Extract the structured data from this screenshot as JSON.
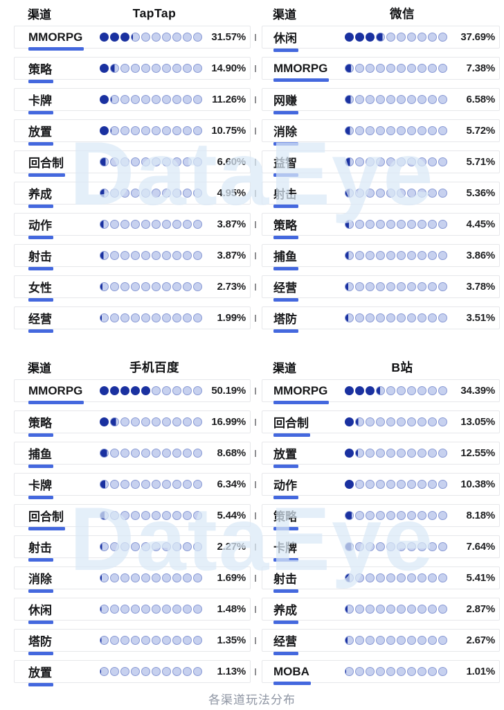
{
  "page": {
    "column_header": "渠道",
    "footer_caption": "各渠道玩法分布",
    "watermark_text": "DataEye"
  },
  "colors": {
    "dot_filled": "#1a31a0",
    "dot_empty_fill": "#c7d1ef",
    "dot_empty_border": "#8798d4",
    "label_underline": "#4468de",
    "row_border": "#e6e7ea",
    "text_primary": "#17181a",
    "tick_gray": "#8f8f92",
    "footer_text": "#8e95a3",
    "watermark_blue": "#dbe9f7"
  },
  "chart_data": [
    {
      "type": "bar",
      "style": "dot-matrix: 10 circles per row, each circle = 10%, filled proportionally",
      "legend_position": "none",
      "grid": false,
      "xlim": [
        0,
        100
      ],
      "unit": "%",
      "col_header": "渠道",
      "title": "TapTap",
      "categories": [
        "MMORPG",
        "策略",
        "卡牌",
        "放置",
        "回合制",
        "养成",
        "动作",
        "射击",
        "女性",
        "经营"
      ],
      "values": [
        31.57,
        14.9,
        11.26,
        10.75,
        6.6,
        4.95,
        3.87,
        3.87,
        2.73,
        1.99
      ]
    },
    {
      "type": "bar",
      "style": "dot-matrix: 10 circles per row, each circle = 10%, filled proportionally",
      "legend_position": "none",
      "grid": false,
      "xlim": [
        0,
        100
      ],
      "unit": "%",
      "col_header": "渠道",
      "title": "微信",
      "categories": [
        "休闲",
        "MMORPG",
        "网赚",
        "消除",
        "益智",
        "射击",
        "策略",
        "捕鱼",
        "经营",
        "塔防"
      ],
      "values": [
        37.69,
        7.38,
        6.58,
        5.72,
        5.71,
        5.36,
        4.45,
        3.86,
        3.78,
        3.51
      ]
    },
    {
      "type": "bar",
      "style": "dot-matrix: 10 circles per row, each circle = 10%, filled proportionally",
      "legend_position": "none",
      "grid": false,
      "xlim": [
        0,
        100
      ],
      "unit": "%",
      "col_header": "渠道",
      "title": "手机百度",
      "categories": [
        "MMORPG",
        "策略",
        "捕鱼",
        "卡牌",
        "回合制",
        "射击",
        "消除",
        "休闲",
        "塔防",
        "放置"
      ],
      "values": [
        50.19,
        16.99,
        8.68,
        6.34,
        5.44,
        2.27,
        1.69,
        1.48,
        1.35,
        1.13
      ]
    },
    {
      "type": "bar",
      "style": "dot-matrix: 10 circles per row, each circle = 10%, filled proportionally",
      "legend_position": "none",
      "grid": false,
      "xlim": [
        0,
        100
      ],
      "unit": "%",
      "col_header": "渠道",
      "title": "B站",
      "categories": [
        "MMORPG",
        "回合制",
        "放置",
        "动作",
        "策略",
        "卡牌",
        "射击",
        "养成",
        "经营",
        "MOBA"
      ],
      "values": [
        34.39,
        13.05,
        12.55,
        10.38,
        8.18,
        7.64,
        5.41,
        2.87,
        2.67,
        1.01
      ]
    }
  ]
}
